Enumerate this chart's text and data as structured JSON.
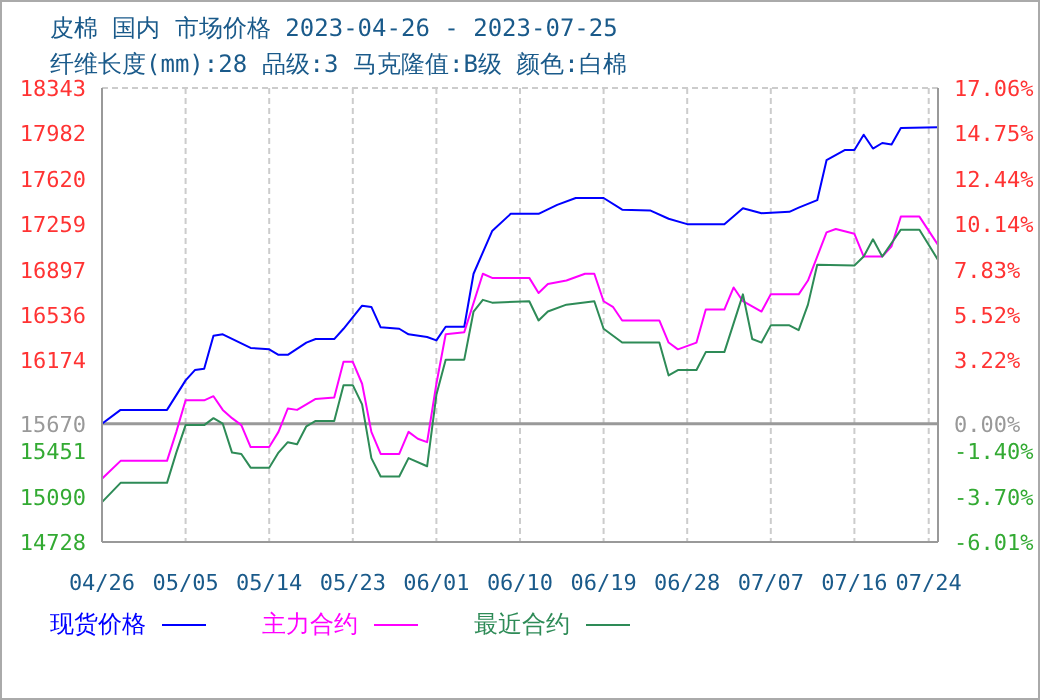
{
  "chart_data": {
    "type": "line",
    "title": "皮棉 国内 市场价格 2023-04-26 - 2023-07-25",
    "subtitle": "纤维长度(mm):28 品级:3 马克隆值:B级 颜色:白棉",
    "xlim": [
      "2023-04-26",
      "2023-07-25"
    ],
    "xticks": [
      {
        "value": "2023-04-26",
        "label": "04/26"
      },
      {
        "value": "2023-05-05",
        "label": "05/05"
      },
      {
        "value": "2023-05-14",
        "label": "05/14"
      },
      {
        "value": "2023-05-23",
        "label": "05/23"
      },
      {
        "value": "2023-06-01",
        "label": "06/01"
      },
      {
        "value": "2023-06-10",
        "label": "06/10"
      },
      {
        "value": "2023-06-19",
        "label": "06/19"
      },
      {
        "value": "2023-06-28",
        "label": "06/28"
      },
      {
        "value": "2023-07-07",
        "label": "07/07"
      },
      {
        "value": "2023-07-16",
        "label": "07/16"
      },
      {
        "value": "2023-07-24",
        "label": "07/24"
      }
    ],
    "ylim": [
      14728,
      18343
    ],
    "yticks": [
      14728,
      15090,
      15451,
      15670,
      16174,
      16536,
      16897,
      17259,
      17620,
      17982,
      18343
    ],
    "y2lim": [
      -6.01,
      17.06
    ],
    "y2ticks": [
      {
        "value": -6.01,
        "label": "-6.01%"
      },
      {
        "value": -3.7,
        "label": "-3.70%"
      },
      {
        "value": -1.4,
        "label": "-1.40%"
      },
      {
        "value": 0,
        "label": "0.00%"
      },
      {
        "value": 3.22,
        "label": "3.22%"
      },
      {
        "value": 5.52,
        "label": "5.52%"
      },
      {
        "value": 7.83,
        "label": "7.83%"
      },
      {
        "value": 10.14,
        "label": "10.14%"
      },
      {
        "value": 12.44,
        "label": "12.44%"
      },
      {
        "value": 14.75,
        "label": "14.75%"
      },
      {
        "value": 17.06,
        "label": "17.06%"
      }
    ],
    "ref_lines": [
      {
        "axis": "y",
        "value": 15670,
        "color": "#999999"
      }
    ],
    "grid": true,
    "legend": "bottom",
    "marker": "none",
    "line_style": "solid",
    "series": [
      {
        "name": "现货价格",
        "color": "#0000ff",
        "x": [
          "2023-04-26",
          "2023-04-28",
          "2023-05-03",
          "2023-05-05",
          "2023-05-06",
          "2023-05-07",
          "2023-05-08",
          "2023-05-09",
          "2023-05-12",
          "2023-05-14",
          "2023-05-15",
          "2023-05-16",
          "2023-05-18",
          "2023-05-19",
          "2023-05-21",
          "2023-05-22",
          "2023-05-24",
          "2023-05-25",
          "2023-05-26",
          "2023-05-28",
          "2023-05-29",
          "2023-05-31",
          "2023-06-01",
          "2023-06-02",
          "2023-06-04",
          "2023-06-05",
          "2023-06-07",
          "2023-06-09",
          "2023-06-12",
          "2023-06-14",
          "2023-06-16",
          "2023-06-19",
          "2023-06-21",
          "2023-06-24",
          "2023-06-26",
          "2023-06-28",
          "2023-07-02",
          "2023-07-04",
          "2023-07-06",
          "2023-07-09",
          "2023-07-10",
          "2023-07-12",
          "2023-07-13",
          "2023-07-15",
          "2023-07-16",
          "2023-07-17",
          "2023-07-18",
          "2023-07-19",
          "2023-07-20",
          "2023-07-21",
          "2023-07-25"
        ],
        "values": [
          15670,
          15780,
          15780,
          16015,
          16097,
          16108,
          16371,
          16382,
          16273,
          16262,
          16218,
          16218,
          16316,
          16344,
          16344,
          16426,
          16610,
          16600,
          16437,
          16426,
          16382,
          16360,
          16333,
          16442,
          16442,
          16864,
          17204,
          17341,
          17341,
          17412,
          17467,
          17467,
          17374,
          17368,
          17302,
          17259,
          17259,
          17385,
          17346,
          17357,
          17390,
          17450,
          17768,
          17850,
          17850,
          17971,
          17861,
          17905,
          17894,
          18025,
          18031
        ]
      },
      {
        "name": "主力合约",
        "color": "#ff00ff",
        "x": [
          "2023-04-26",
          "2023-04-28",
          "2023-05-03",
          "2023-05-04",
          "2023-05-05",
          "2023-05-07",
          "2023-05-08",
          "2023-05-09",
          "2023-05-10",
          "2023-05-11",
          "2023-05-12",
          "2023-05-14",
          "2023-05-15",
          "2023-05-16",
          "2023-05-17",
          "2023-05-19",
          "2023-05-21",
          "2023-05-22",
          "2023-05-23",
          "2023-05-24",
          "2023-05-25",
          "2023-05-26",
          "2023-05-28",
          "2023-05-29",
          "2023-05-30",
          "2023-05-31",
          "2023-06-01",
          "2023-06-02",
          "2023-06-04",
          "2023-06-06",
          "2023-06-07",
          "2023-06-11",
          "2023-06-12",
          "2023-06-13",
          "2023-06-15",
          "2023-06-17",
          "2023-06-18",
          "2023-06-19",
          "2023-06-20",
          "2023-06-21",
          "2023-06-25",
          "2023-06-26",
          "2023-06-27",
          "2023-06-29",
          "2023-06-30",
          "2023-07-02",
          "2023-07-03",
          "2023-07-04",
          "2023-07-06",
          "2023-07-07",
          "2023-07-10",
          "2023-07-11",
          "2023-07-13",
          "2023-07-14",
          "2023-07-16",
          "2023-07-17",
          "2023-07-19",
          "2023-07-20",
          "2023-07-21",
          "2023-07-23",
          "2023-07-25"
        ],
        "values": [
          15232,
          15374,
          15374,
          15605,
          15856,
          15856,
          15889,
          15780,
          15714,
          15659,
          15484,
          15484,
          15605,
          15791,
          15780,
          15867,
          15878,
          16163,
          16163,
          15988,
          15605,
          15429,
          15429,
          15605,
          15550,
          15523,
          15988,
          16382,
          16399,
          16864,
          16831,
          16831,
          16711,
          16782,
          16810,
          16864,
          16864,
          16645,
          16601,
          16492,
          16492,
          16316,
          16262,
          16316,
          16579,
          16579,
          16755,
          16645,
          16563,
          16700,
          16700,
          16810,
          17193,
          17220,
          17182,
          17001,
          17001,
          17083,
          17319,
          17319,
          17094
        ]
      },
      {
        "name": "最近合约",
        "color": "#2e8b57",
        "x": [
          "2023-04-26",
          "2023-04-28",
          "2023-05-03",
          "2023-05-04",
          "2023-05-05",
          "2023-05-07",
          "2023-05-08",
          "2023-05-09",
          "2023-05-10",
          "2023-05-11",
          "2023-05-12",
          "2023-05-14",
          "2023-05-15",
          "2023-05-16",
          "2023-05-17",
          "2023-05-18",
          "2023-05-19",
          "2023-05-21",
          "2023-05-22",
          "2023-05-23",
          "2023-05-24",
          "2023-05-25",
          "2023-05-26",
          "2023-05-28",
          "2023-05-29",
          "2023-05-31",
          "2023-06-01",
          "2023-06-02",
          "2023-06-04",
          "2023-06-05",
          "2023-06-06",
          "2023-06-07",
          "2023-06-11",
          "2023-06-12",
          "2023-06-13",
          "2023-06-15",
          "2023-06-18",
          "2023-06-19",
          "2023-06-21",
          "2023-06-25",
          "2023-06-26",
          "2023-06-27",
          "2023-06-29",
          "2023-06-30",
          "2023-07-02",
          "2023-07-04",
          "2023-07-05",
          "2023-07-06",
          "2023-07-07",
          "2023-07-09",
          "2023-07-10",
          "2023-07-11",
          "2023-07-12",
          "2023-07-16",
          "2023-07-17",
          "2023-07-18",
          "2023-07-19",
          "2023-07-21",
          "2023-07-23",
          "2023-07-25"
        ],
        "values": [
          15046,
          15199,
          15199,
          15440,
          15659,
          15659,
          15714,
          15670,
          15440,
          15429,
          15320,
          15320,
          15440,
          15523,
          15506,
          15649,
          15692,
          15692,
          15977,
          15977,
          15824,
          15396,
          15249,
          15249,
          15396,
          15331,
          15900,
          16180,
          16180,
          16563,
          16656,
          16634,
          16645,
          16492,
          16563,
          16618,
          16645,
          16426,
          16316,
          16316,
          16054,
          16097,
          16097,
          16240,
          16240,
          16700,
          16344,
          16316,
          16453,
          16453,
          16415,
          16618,
          16935,
          16930,
          17001,
          17138,
          17001,
          17215,
          17215,
          16974
        ]
      }
    ]
  }
}
